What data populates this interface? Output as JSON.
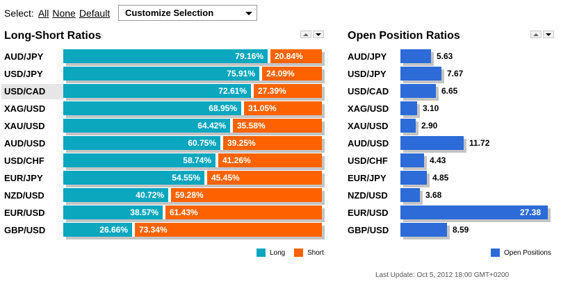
{
  "select_bar": {
    "label": "Select:",
    "all": "All",
    "none": "None",
    "default": "Default",
    "dropdown": "Customize Selection"
  },
  "long_short": {
    "title": "Long-Short Ratios",
    "legend": {
      "long": "Long",
      "short": "Short"
    },
    "colors": {
      "long": "#0ba7bf",
      "short": "#fc6300"
    },
    "rows": [
      {
        "pair": "AUD/JPY",
        "long": "79.16%",
        "short": "20.84%",
        "long_pct": 79.16
      },
      {
        "pair": "USD/JPY",
        "long": "75.91%",
        "short": "24.09%",
        "long_pct": 75.91
      },
      {
        "pair": "USD/CAD",
        "long": "72.61%",
        "short": "27.39%",
        "long_pct": 72.61
      },
      {
        "pair": "XAG/USD",
        "long": "68.95%",
        "short": "31.05%",
        "long_pct": 68.95
      },
      {
        "pair": "XAU/USD",
        "long": "64.42%",
        "short": "35.58%",
        "long_pct": 64.42
      },
      {
        "pair": "AUD/USD",
        "long": "60.75%",
        "short": "39.25%",
        "long_pct": 60.75
      },
      {
        "pair": "USD/CHF",
        "long": "58.74%",
        "short": "41.26%",
        "long_pct": 58.74
      },
      {
        "pair": "EUR/JPY",
        "long": "54.55%",
        "short": "45.45%",
        "long_pct": 54.55
      },
      {
        "pair": "NZD/USD",
        "long": "40.72%",
        "short": "59.28%",
        "long_pct": 40.72
      },
      {
        "pair": "EUR/USD",
        "long": "38.57%",
        "short": "61.43%",
        "long_pct": 38.57
      },
      {
        "pair": "GBP/USD",
        "long": "26.66%",
        "short": "73.34%",
        "long_pct": 26.66
      }
    ]
  },
  "open_positions": {
    "title": "Open Position Ratios",
    "legend": "Open Positions",
    "color": "#2c6bd8",
    "max": 27.38,
    "rows": [
      {
        "pair": "AUD/JPY",
        "value": "5.63"
      },
      {
        "pair": "USD/JPY",
        "value": "7.67"
      },
      {
        "pair": "USD/CAD",
        "value": "6.65"
      },
      {
        "pair": "XAG/USD",
        "value": "3.10"
      },
      {
        "pair": "XAU/USD",
        "value": "2.90"
      },
      {
        "pair": "AUD/USD",
        "value": "11.72"
      },
      {
        "pair": "USD/CHF",
        "value": "4.43"
      },
      {
        "pair": "EUR/JPY",
        "value": "4.85"
      },
      {
        "pair": "NZD/USD",
        "value": "3.68"
      },
      {
        "pair": "EUR/USD",
        "value": "27.38"
      },
      {
        "pair": "GBP/USD",
        "value": "8.59"
      }
    ]
  },
  "highlighted_pair": "USD/CAD",
  "last_update": "Last Update: Oct 5, 2012 18:00 GMT+0200"
}
